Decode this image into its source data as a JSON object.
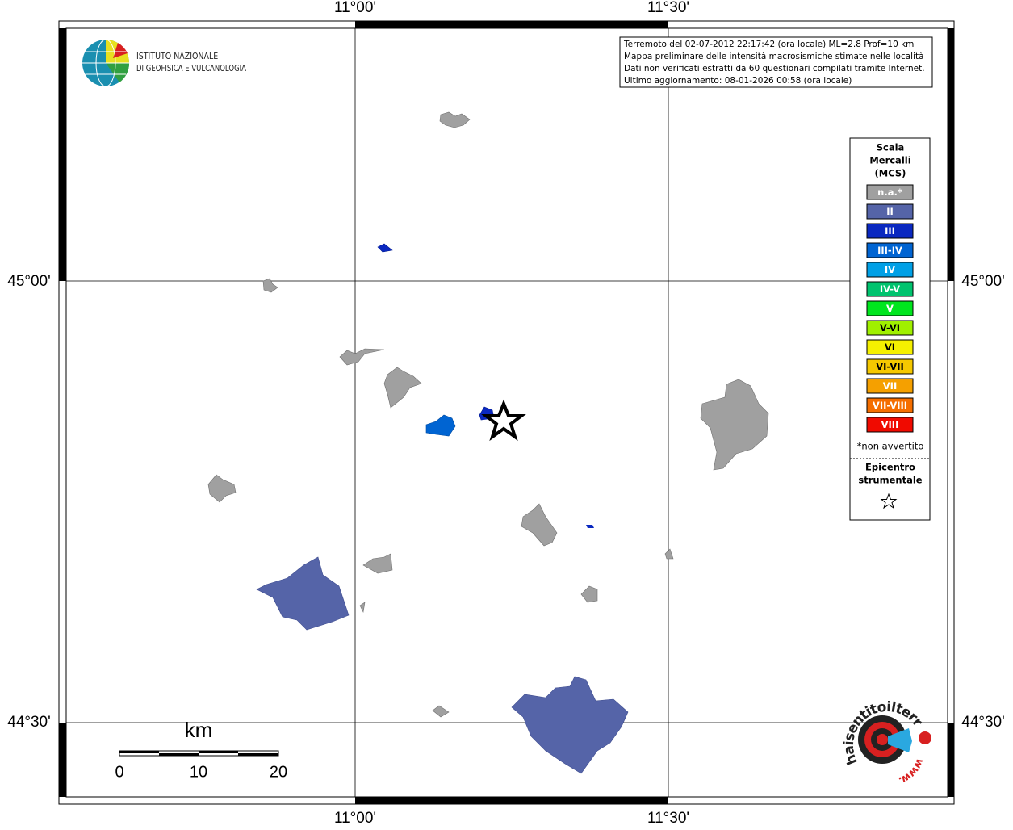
{
  "logo": {
    "line1": "ISTITUTO NAZIONALE",
    "line2": "DI GEOFISICA E VULCANOLOGIA"
  },
  "info": {
    "lines": [
      "Terremoto del 02-07-2012 22:17:42 (ora locale) ML=2.8 Prof=10 km",
      "Mappa preliminare delle intensità macrosismiche stimate nelle località",
      "Dati non verificati estratti da 60 questionari compilati tramite Internet.",
      "Ultimo aggiornamento: 08-01-2026 00:58 (ora locale)"
    ]
  },
  "graticule": {
    "lon": [
      "11°00'",
      "11°30'"
    ],
    "lat": [
      "45°00'",
      "44°30'"
    ]
  },
  "legend": {
    "title": [
      "Scala",
      "Mercalli",
      "(MCS)"
    ],
    "items": [
      {
        "label": "n.a.*",
        "color": "#a0a0a0"
      },
      {
        "label": "II",
        "color": "#5564a8"
      },
      {
        "label": "III",
        "color": "#0a28c0"
      },
      {
        "label": "III-IV",
        "color": "#0064d2"
      },
      {
        "label": "IV",
        "color": "#00a0e6"
      },
      {
        "label": "IV-V",
        "color": "#00c36e"
      },
      {
        "label": "V",
        "color": "#00e61e"
      },
      {
        "label": "V-VI",
        "color": "#a0f000"
      },
      {
        "label": "VI",
        "color": "#f5f000"
      },
      {
        "label": "VI-VII",
        "color": "#f5c800"
      },
      {
        "label": "VII",
        "color": "#f5a000"
      },
      {
        "label": "VII-VIII",
        "color": "#f56e00"
      },
      {
        "label": "VIII",
        "color": "#f00a00"
      }
    ],
    "note": "*non avvertito",
    "epicentre": [
      "Epicentro",
      "strumentale"
    ]
  },
  "scale_bar": {
    "unit": "km",
    "labels": [
      "0",
      "10",
      "20"
    ]
  },
  "site_logo": {
    "text": "haisentitoilterremoto.it",
    "prefix": "www."
  }
}
